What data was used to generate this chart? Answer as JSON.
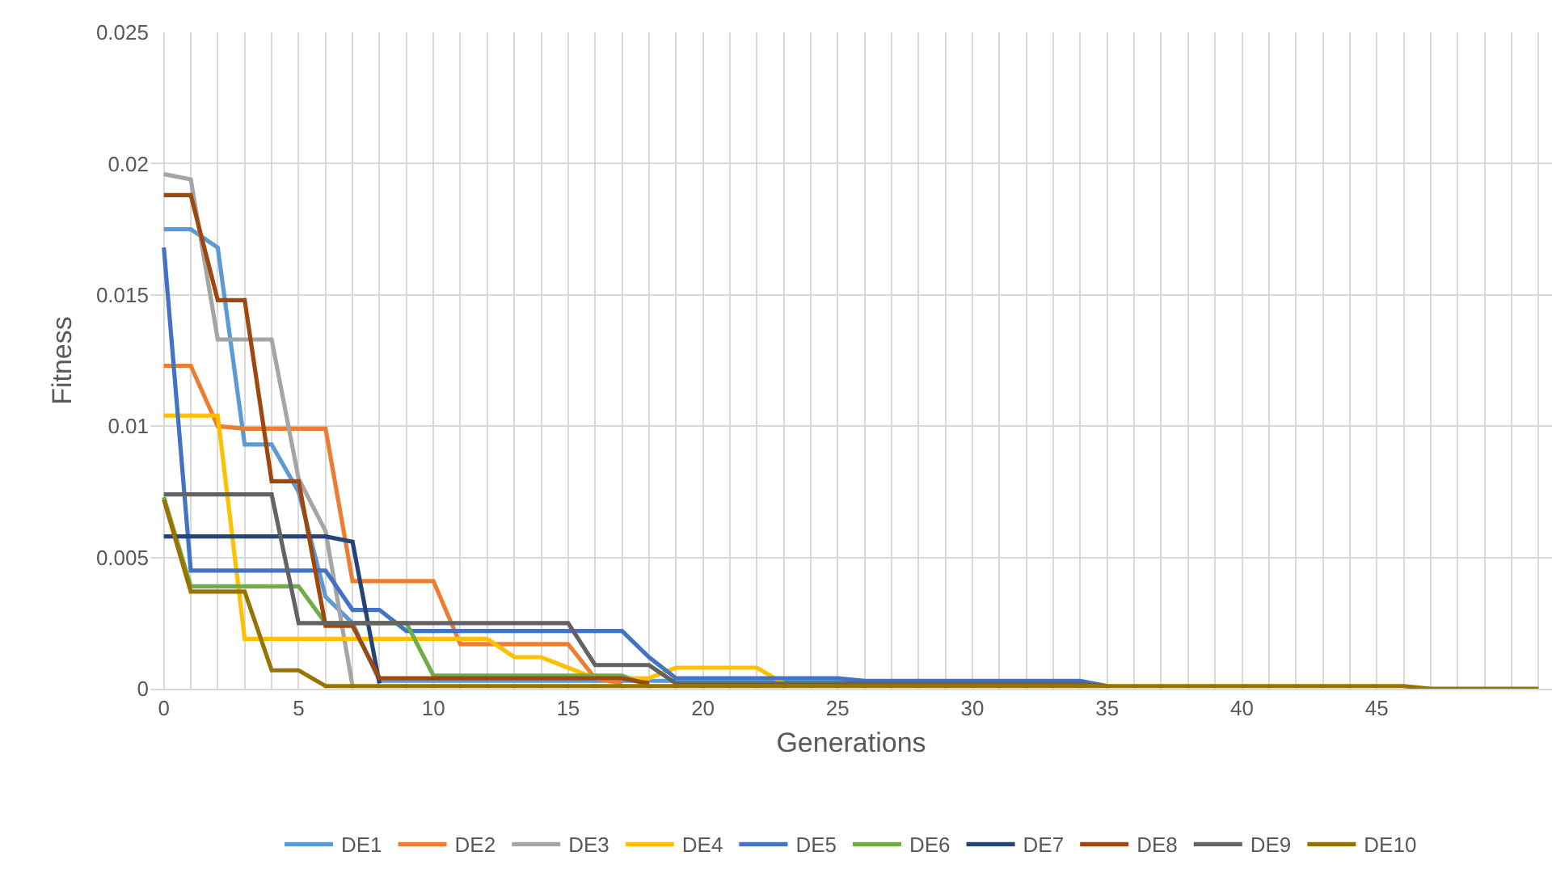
{
  "chart_data": {
    "type": "line",
    "xlabel": "Generations",
    "ylabel": "Fitness",
    "x": [
      0,
      1,
      2,
      3,
      4,
      5,
      6,
      7,
      8,
      9,
      10,
      11,
      12,
      13,
      14,
      15,
      16,
      17,
      18,
      19,
      20,
      21,
      22,
      23,
      24,
      25,
      26,
      27,
      28,
      29,
      30,
      31,
      32,
      33,
      34,
      35,
      36,
      37,
      38,
      39,
      40,
      41,
      42,
      43,
      44,
      45,
      46,
      47,
      48,
      49,
      50,
      51
    ],
    "xlim": [
      -0.5,
      51.5
    ],
    "xticks": [
      0,
      {
        "value": 1,
        "label": null
      },
      {
        "value": 2,
        "label": null
      },
      {
        "value": 3,
        "label": null
      },
      {
        "value": 4,
        "label": null
      },
      5,
      {
        "value": 6,
        "label": null
      },
      {
        "value": 7,
        "label": null
      },
      {
        "value": 8,
        "label": null
      },
      {
        "value": 9,
        "label": null
      },
      10,
      {
        "value": 11,
        "label": null
      },
      {
        "value": 12,
        "label": null
      },
      {
        "value": 13,
        "label": null
      },
      {
        "value": 14,
        "label": null
      },
      15,
      {
        "value": 16,
        "label": null
      },
      {
        "value": 17,
        "label": null
      },
      {
        "value": 18,
        "label": null
      },
      {
        "value": 19,
        "label": null
      },
      20,
      {
        "value": 21,
        "label": null
      },
      {
        "value": 22,
        "label": null
      },
      {
        "value": 23,
        "label": null
      },
      {
        "value": 24,
        "label": null
      },
      25,
      {
        "value": 26,
        "label": null
      },
      {
        "value": 27,
        "label": null
      },
      {
        "value": 28,
        "label": null
      },
      {
        "value": 29,
        "label": null
      },
      30,
      {
        "value": 31,
        "label": null
      },
      {
        "value": 32,
        "label": null
      },
      {
        "value": 33,
        "label": null
      },
      {
        "value": 34,
        "label": null
      },
      35,
      {
        "value": 36,
        "label": null
      },
      {
        "value": 37,
        "label": null
      },
      {
        "value": 38,
        "label": null
      },
      {
        "value": 39,
        "label": null
      },
      40,
      {
        "value": 41,
        "label": null
      },
      {
        "value": 42,
        "label": null
      },
      {
        "value": 43,
        "label": null
      },
      {
        "value": 44,
        "label": null
      },
      45,
      {
        "value": 46,
        "label": null
      },
      {
        "value": 47,
        "label": null
      },
      {
        "value": 48,
        "label": null
      },
      {
        "value": 49,
        "label": null
      },
      {
        "value": 50,
        "label": null
      },
      {
        "value": 51,
        "label": null
      }
    ],
    "ylim": [
      0,
      0.025
    ],
    "yticks": [
      0,
      0.005,
      0.01,
      0.015,
      0.02,
      0.025
    ],
    "grid": true,
    "legend": "bottom",
    "marker": "none",
    "line_style": "solid",
    "series": [
      {
        "name": "DE1",
        "color": "#5b9bd5",
        "values": [
          0.0175,
          0.0175,
          0.0168,
          0.0093,
          0.0093,
          0.0075,
          0.0035,
          0.0025,
          0.0003,
          0.0003,
          0.0003,
          0.0003,
          0.0003,
          0.0003,
          0.0003,
          0.0003,
          0.0003,
          0.0003,
          0.0003,
          0.0003,
          0.0003,
          0.0003,
          0.0003,
          0.0003,
          0.0003,
          0.0003,
          0.0001,
          null,
          null,
          null,
          null,
          null,
          null,
          null,
          null,
          null,
          null,
          null,
          null,
          null,
          null,
          null,
          null,
          null,
          null,
          null,
          null,
          null,
          null,
          null,
          null,
          null
        ]
      },
      {
        "name": "DE2",
        "color": "#ed7d31",
        "values": [
          0.0123,
          0.0123,
          0.01,
          0.0099,
          0.0099,
          0.0099,
          0.0099,
          0.0041,
          0.0041,
          0.0041,
          0.0041,
          0.0017,
          0.0017,
          0.0017,
          0.0017,
          0.0017,
          0.0004,
          0.0002,
          null,
          null,
          null,
          null,
          null,
          null,
          null,
          null,
          null,
          null,
          null,
          null,
          null,
          null,
          null,
          null,
          null,
          null,
          null,
          null,
          null,
          null,
          null,
          null,
          null,
          null,
          null,
          null,
          null,
          null,
          null,
          null,
          null,
          null
        ]
      },
      {
        "name": "DE3",
        "color": "#a5a5a5",
        "values": [
          0.0196,
          0.0194,
          0.0133,
          0.0133,
          0.0133,
          0.008,
          0.006,
          0.0001,
          null,
          null,
          null,
          null,
          null,
          null,
          null,
          null,
          null,
          null,
          null,
          null,
          null,
          null,
          null,
          null,
          null,
          null,
          null,
          null,
          null,
          null,
          null,
          null,
          null,
          null,
          null,
          null,
          null,
          null,
          null,
          null,
          null,
          null,
          null,
          null,
          null,
          null,
          null,
          null,
          null,
          null,
          null,
          null
        ]
      },
      {
        "name": "DE4",
        "color": "#ffc000",
        "values": [
          0.0104,
          0.0104,
          0.0104,
          0.0019,
          0.0019,
          0.0019,
          0.0019,
          0.0019,
          0.0019,
          0.0019,
          0.0019,
          0.0019,
          0.0019,
          0.0012,
          0.0012,
          0.0008,
          0.0004,
          0.0004,
          0.0004,
          0.0008,
          0.0008,
          0.0008,
          0.0008,
          0.0002,
          null,
          null,
          null,
          null,
          null,
          null,
          null,
          null,
          null,
          null,
          null,
          null,
          null,
          null,
          null,
          null,
          null,
          null,
          null,
          null,
          null,
          null,
          null,
          null,
          null,
          null,
          null,
          null
        ]
      },
      {
        "name": "DE5",
        "color": "#4472c4",
        "values": [
          0.0168,
          0.0045,
          0.0045,
          0.0045,
          0.0045,
          0.0045,
          0.0045,
          0.003,
          0.003,
          0.0022,
          0.0022,
          0.0022,
          0.0022,
          0.0022,
          0.0022,
          0.0022,
          0.0022,
          0.0022,
          0.0012,
          0.0004,
          0.0004,
          0.0004,
          0.0004,
          0.0004,
          0.0004,
          0.0004,
          0.0003,
          0.0003,
          0.0003,
          0.0003,
          0.0003,
          0.0003,
          0.0003,
          0.0003,
          0.0003,
          0.0001,
          null,
          null,
          null,
          null,
          null,
          null,
          null,
          null,
          null,
          null,
          null,
          null,
          null,
          null,
          null,
          null
        ]
      },
      {
        "name": "DE6",
        "color": "#70ad47",
        "values": [
          0.0073,
          0.0039,
          0.0039,
          0.0039,
          0.0039,
          0.0039,
          0.0025,
          0.0025,
          0.0025,
          0.0025,
          0.0005,
          0.0005,
          0.0005,
          0.0005,
          0.0005,
          0.0005,
          0.0005,
          0.0005,
          0.0001,
          null,
          null,
          null,
          null,
          null,
          null,
          null,
          null,
          null,
          null,
          null,
          null,
          null,
          null,
          null,
          null,
          null,
          null,
          null,
          null,
          null,
          null,
          null,
          null,
          null,
          null,
          null,
          null,
          null,
          null,
          null,
          null,
          null
        ]
      },
      {
        "name": "DE7",
        "color": "#264478",
        "values": [
          0.0058,
          0.0058,
          0.0058,
          0.0058,
          0.0058,
          0.0058,
          0.0058,
          0.0056,
          0.0002,
          null,
          null,
          null,
          null,
          null,
          null,
          null,
          null,
          null,
          null,
          null,
          null,
          null,
          null,
          null,
          null,
          null,
          null,
          null,
          null,
          null,
          null,
          null,
          null,
          null,
          null,
          null,
          null,
          null,
          null,
          null,
          null,
          null,
          null,
          null,
          null,
          null,
          null,
          null,
          null,
          null,
          null,
          null
        ]
      },
      {
        "name": "DE8",
        "color": "#9e480e",
        "values": [
          0.0188,
          0.0188,
          0.0148,
          0.0148,
          0.0079,
          0.0079,
          0.0024,
          0.0024,
          0.0004,
          0.0004,
          0.0004,
          0.0004,
          0.0004,
          0.0004,
          0.0004,
          0.0004,
          0.0004,
          0.0004,
          0.0002,
          null,
          null,
          null,
          null,
          null,
          null,
          null,
          null,
          null,
          null,
          null,
          null,
          null,
          null,
          null,
          null,
          null,
          null,
          null,
          null,
          null,
          null,
          null,
          null,
          null,
          null,
          null,
          null,
          null,
          null,
          null,
          null,
          null
        ]
      },
      {
        "name": "DE9",
        "color": "#636363",
        "values": [
          0.0074,
          0.0074,
          0.0074,
          0.0074,
          0.0074,
          0.0025,
          0.0025,
          0.0025,
          0.0025,
          0.0025,
          0.0025,
          0.0025,
          0.0025,
          0.0025,
          0.0025,
          0.0025,
          0.0009,
          0.0009,
          0.0009,
          0.0002,
          0.0002,
          0.0002,
          0.0002,
          0.0002,
          0.0002,
          0.0002,
          0.0002,
          0.0002,
          0.0002,
          0.0002,
          0.0002,
          0.0002,
          0.0002,
          0.0002,
          0.0002,
          0.0001,
          null,
          null,
          null,
          null,
          null,
          null,
          null,
          null,
          null,
          null,
          null,
          null,
          null,
          null,
          null,
          null
        ]
      },
      {
        "name": "DE10",
        "color": "#997300",
        "values": [
          0.0072,
          0.0037,
          0.0037,
          0.0037,
          0.0007,
          0.0007,
          0.0001,
          0.0001,
          0.0001,
          0.0001,
          0.0001,
          0.0001,
          0.0001,
          0.0001,
          0.0001,
          0.0001,
          0.0001,
          0.0001,
          0.0001,
          0.0001,
          0.0001,
          0.0001,
          0.0001,
          0.0001,
          0.0001,
          0.0001,
          0.0001,
          0.0001,
          0.0001,
          0.0001,
          0.0001,
          0.0001,
          0.0001,
          0.0001,
          0.0001,
          0.0001,
          0.0001,
          0.0001,
          0.0001,
          0.0001,
          0.0001,
          0.0001,
          0.0001,
          0.0001,
          0.0001,
          0.0001,
          0.0001,
          0,
          0,
          0,
          0,
          0
        ]
      }
    ]
  }
}
